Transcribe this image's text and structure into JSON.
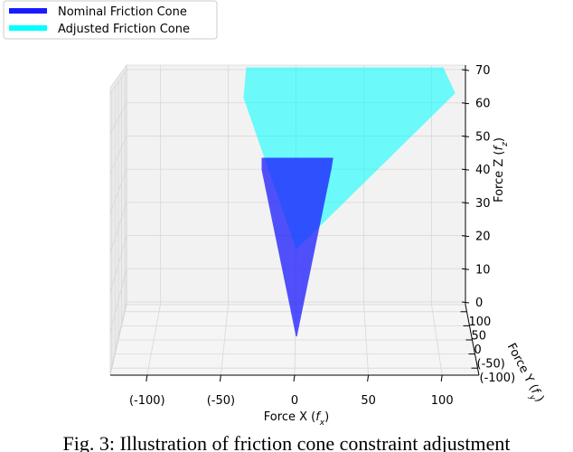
{
  "chart_data": {
    "type": "3d",
    "series": [
      {
        "name": "Nominal Friction Cone",
        "color": "#1a1aff"
      },
      {
        "name": "Adjusted Friction Cone",
        "color": "#00ffff"
      }
    ],
    "xlabel": [
      "Force X (",
      "f",
      "x",
      ")"
    ],
    "ylabel": [
      "Force Y (",
      "f",
      "y",
      ")"
    ],
    "zlabel": [
      "Force Z (",
      "f",
      "z",
      ")"
    ],
    "xlim": [
      -125,
      125
    ],
    "xticks": [
      {
        "value": -100,
        "label": "(-100)"
      },
      {
        "value": -50,
        "label": "(-50)"
      },
      0,
      50,
      100
    ],
    "ylim": [
      -125,
      125
    ],
    "yticks": [
      100,
      50,
      0,
      {
        "value": -50,
        "label": "(-50)"
      },
      {
        "value": -100,
        "label": "(-100)"
      }
    ],
    "zlim": [
      0,
      70
    ],
    "zticks": [
      0,
      10,
      20,
      30,
      40,
      50,
      60,
      70
    ],
    "grid": true
  },
  "caption": "Fig. 3: Illustration of friction cone constraint adjustment"
}
